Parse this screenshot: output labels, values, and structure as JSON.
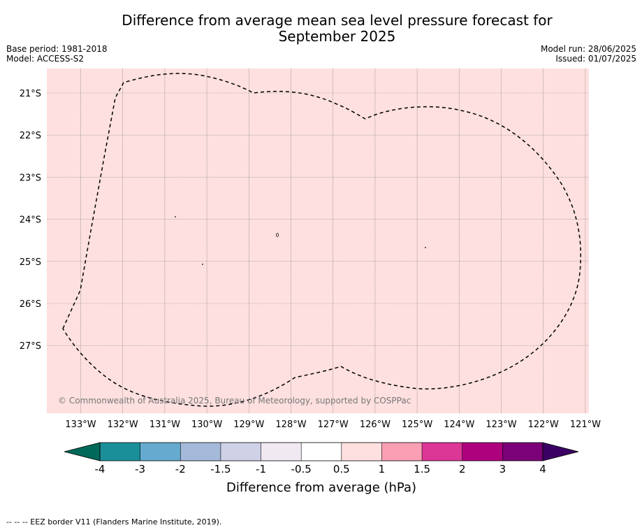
{
  "header": {
    "title_line1": "Difference from average mean sea level pressure forecast for",
    "title_line2": "September 2025",
    "base_period": "Base period: 1981-2018",
    "model": "Model: ACCESS-S2",
    "model_run": "Model run: 28/06/2025",
    "issued": "Issued: 01/07/2025"
  },
  "map": {
    "fill_color": "#fde0df",
    "lat_labels": [
      "21°S",
      "22°S",
      "23°S",
      "24°S",
      "25°S",
      "26°S",
      "27°S"
    ],
    "lon_labels": [
      "133°W",
      "132°W",
      "131°W",
      "130°W",
      "129°W",
      "128°W",
      "127°W",
      "126°W",
      "125°W",
      "124°W",
      "123°W",
      "122°W",
      "121°W"
    ],
    "copyright": "© Commonwealth of Australia 2025, Bureau of Meteorology, supported by COSPPac"
  },
  "colorbar": {
    "label": "Difference from average (hPa)",
    "ticks": [
      "-4",
      "-3",
      "-2",
      "-1.5",
      "-1",
      "-0.5",
      "0.5",
      "1",
      "1.5",
      "2",
      "3",
      "4"
    ],
    "under_color": "#00695a",
    "over_color": "#3b0063",
    "colors": [
      "#1a8f99",
      "#65aacf",
      "#a5b9da",
      "#cfd1e7",
      "#f0e9f2",
      "#ffffff",
      "#fde0df",
      "#fa9fb4",
      "#dc3697",
      "#ae017e",
      "#7a0177"
    ]
  },
  "footnote": "--  --  -- EEZ border V11 (Flanders Marine Institute, 2019)."
}
